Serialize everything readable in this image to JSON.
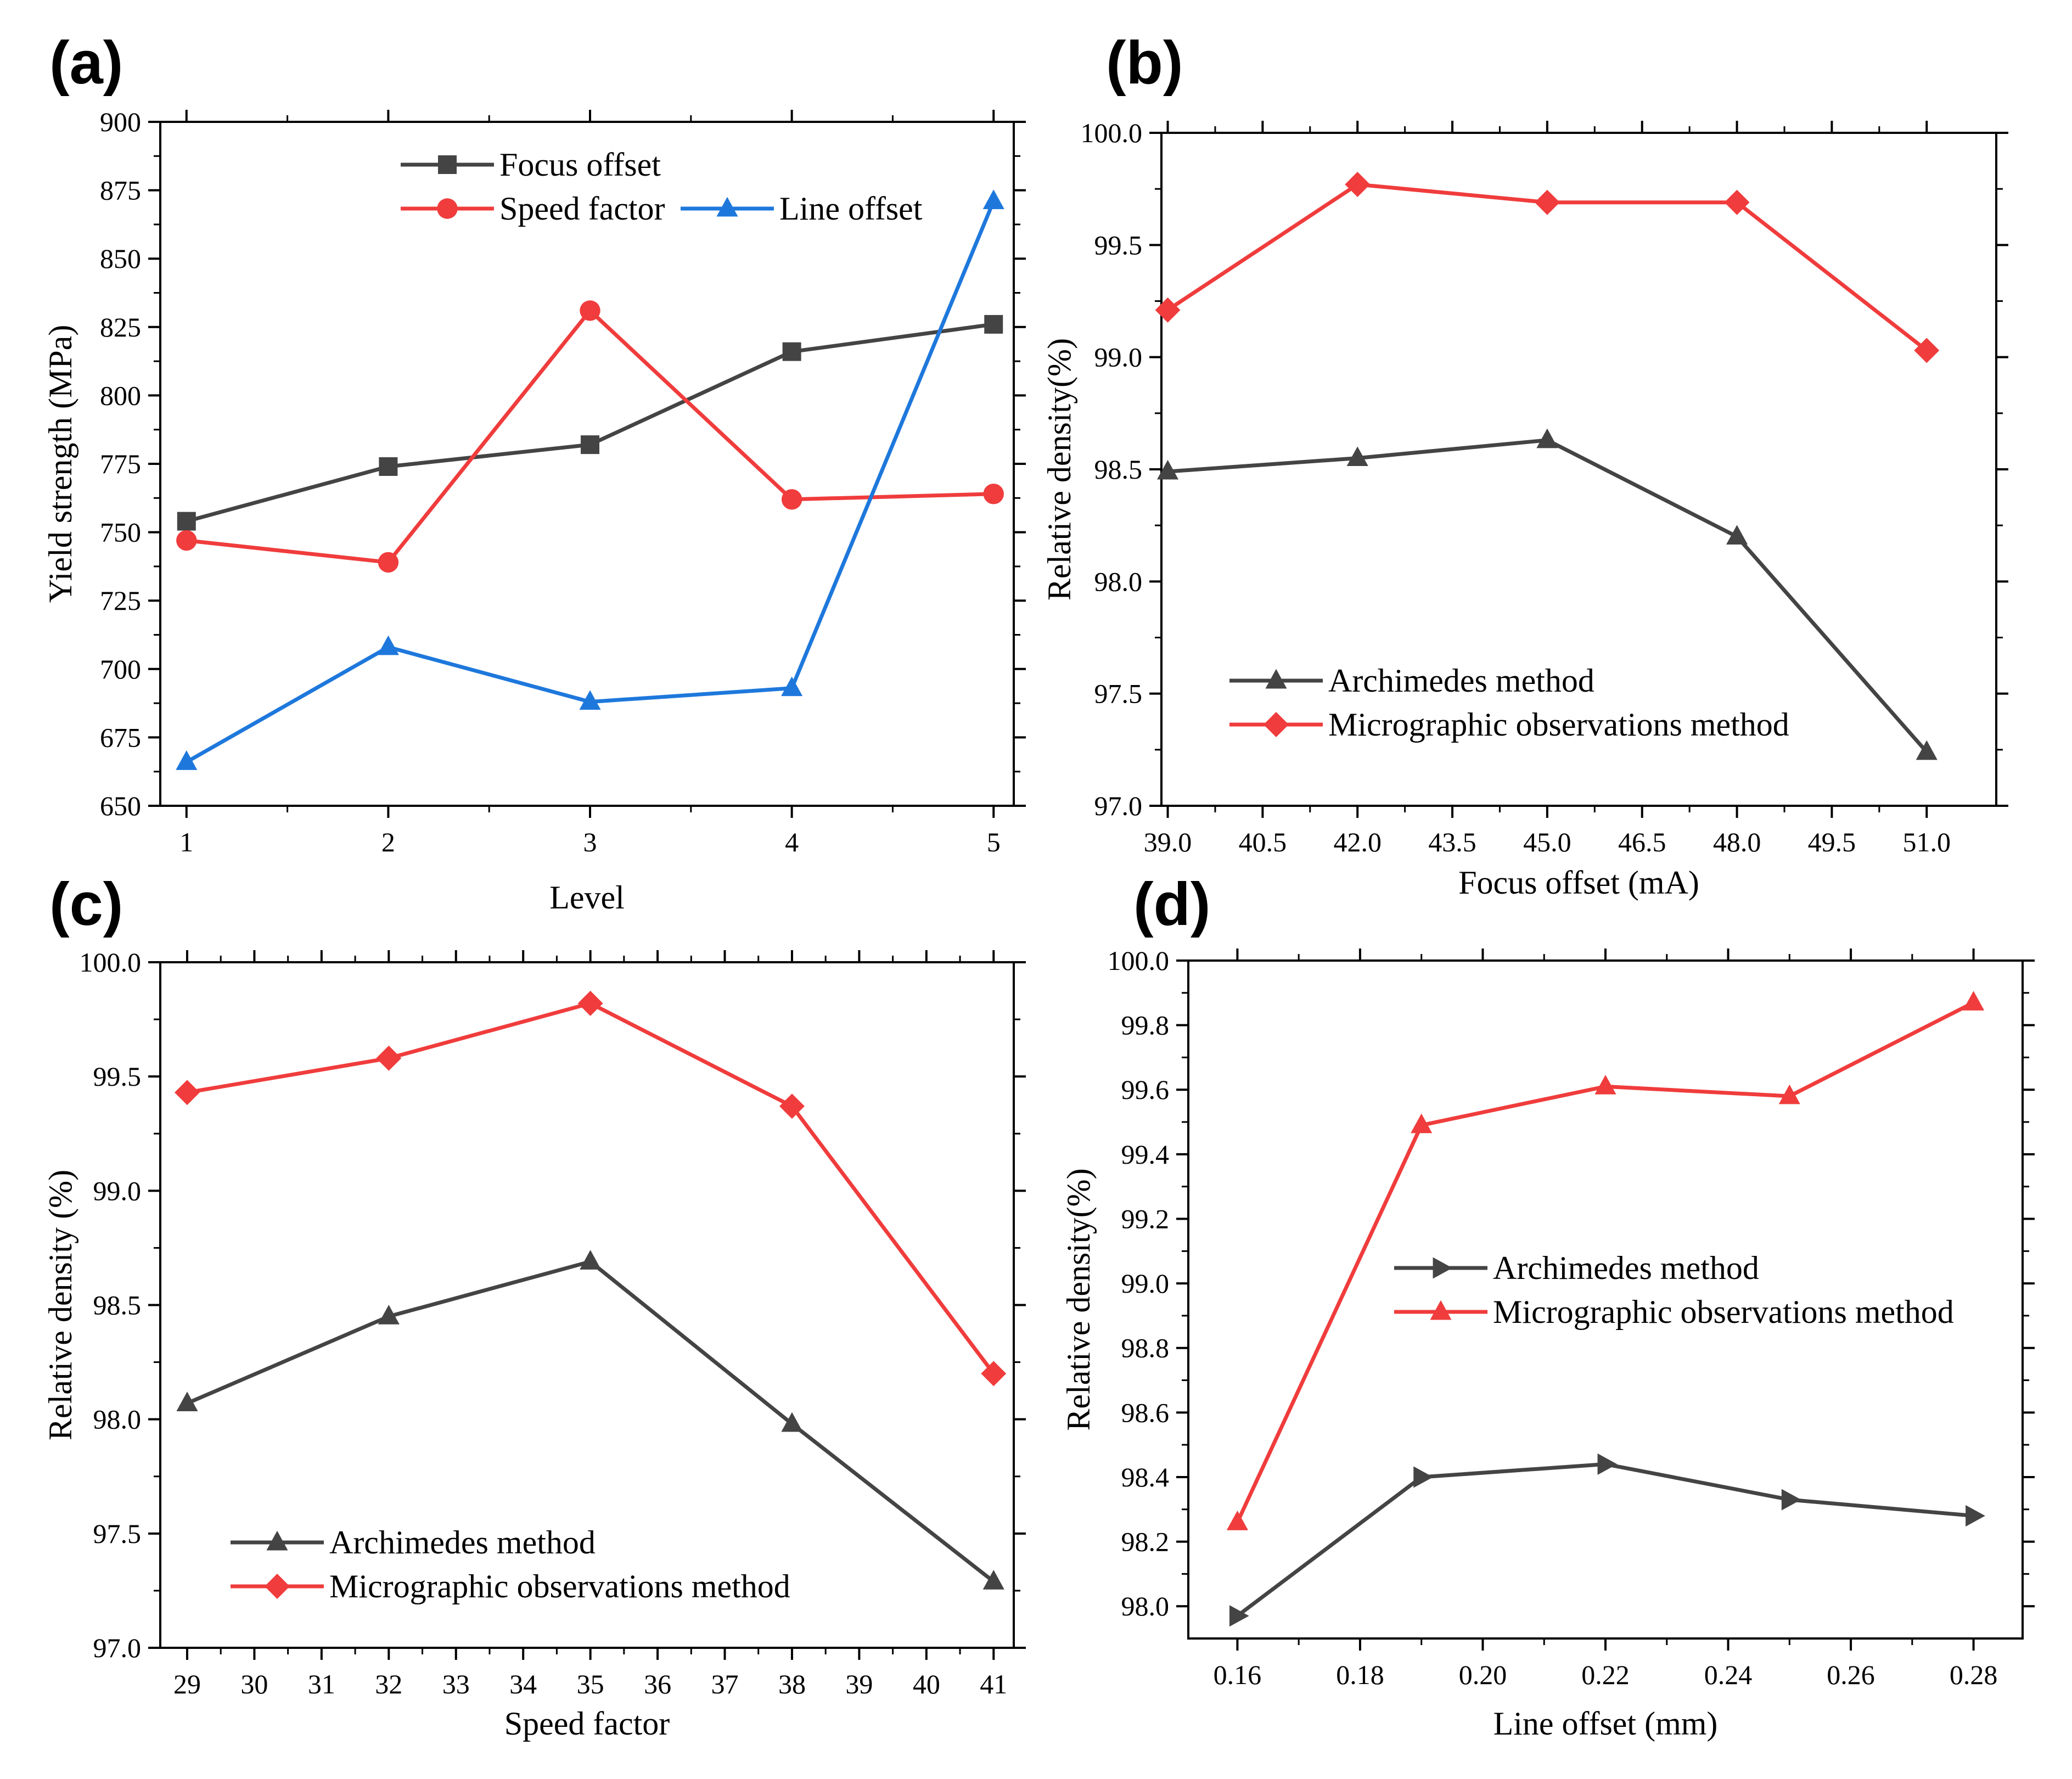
{
  "colors": {
    "black_series": "#444444",
    "red_series": "#F03C3C",
    "blue_series": "#1E78DC"
  },
  "chart_data": [
    {
      "id": "a",
      "panel_label": "(a)",
      "type": "line",
      "xlabel": "Level",
      "ylabel": "Yield strength (MPa)",
      "xlim": [
        0.87,
        5.1
      ],
      "ylim": [
        650,
        900
      ],
      "xticks": [
        1,
        2,
        3,
        4,
        5
      ],
      "xtick_labels": [
        "1",
        "2",
        "3",
        "4",
        "5"
      ],
      "yticks": [
        650,
        675,
        700,
        725,
        750,
        775,
        800,
        825,
        850,
        875,
        900
      ],
      "ytick_labels": [
        "650",
        "675",
        "700",
        "725",
        "750",
        "775",
        "800",
        "825",
        "850",
        "875",
        "900"
      ],
      "legend_position": "top-center",
      "series": [
        {
          "name": "Focus offset",
          "color": "#444444",
          "marker": "square",
          "x": [
            1,
            2,
            3,
            4,
            5
          ],
          "values": [
            754,
            774,
            782,
            816,
            826
          ]
        },
        {
          "name": "Speed factor",
          "color": "#F03C3C",
          "marker": "circle",
          "x": [
            1,
            2,
            3,
            4,
            5
          ],
          "values": [
            747,
            739,
            831,
            762,
            764
          ]
        },
        {
          "name": "Line offset",
          "color": "#1E78DC",
          "marker": "triangle-up",
          "x": [
            1,
            2,
            3,
            4,
            5
          ],
          "values": [
            666,
            708,
            688,
            693,
            871
          ]
        }
      ]
    },
    {
      "id": "b",
      "panel_label": "(b)",
      "type": "line",
      "xlabel": "Focus offset (mA)",
      "ylabel": "Relative density(%)",
      "xlim": [
        38.9,
        52.1
      ],
      "ylim": [
        97.0,
        100.0
      ],
      "xticks": [
        39,
        40.5,
        42,
        43.5,
        45,
        46.5,
        48,
        49.5,
        51
      ],
      "xtick_labels": [
        "39.0",
        "40.5",
        "42.0",
        "43.5",
        "45.0",
        "46.5",
        "48.0",
        "49.5",
        "51.0"
      ],
      "yticks": [
        97.0,
        97.5,
        98.0,
        98.5,
        99.0,
        99.5,
        100.0
      ],
      "ytick_labels": [
        "97.0",
        "97.5",
        "98.0",
        "98.5",
        "99.0",
        "99.5",
        "100.0"
      ],
      "legend_position": "bottom-left",
      "series": [
        {
          "name": "Archimedes method",
          "color": "#444444",
          "marker": "triangle-up",
          "x": [
            39,
            42,
            45,
            48,
            51
          ],
          "values": [
            98.49,
            98.55,
            98.63,
            98.2,
            97.24
          ]
        },
        {
          "name": "Micrographic observations method",
          "color": "#F03C3C",
          "marker": "diamond",
          "x": [
            39,
            42,
            45,
            48,
            51
          ],
          "values": [
            99.21,
            99.77,
            99.69,
            99.69,
            99.03
          ]
        }
      ]
    },
    {
      "id": "c",
      "panel_label": "(c)",
      "type": "line",
      "xlabel": "Speed factor",
      "ylabel": "Relative density (%)",
      "xlim": [
        28.6,
        41.3
      ],
      "ylim": [
        97.0,
        100.0
      ],
      "xticks": [
        29,
        30,
        31,
        32,
        33,
        34,
        35,
        36,
        37,
        38,
        39,
        40,
        41
      ],
      "xtick_labels": [
        "29",
        "30",
        "31",
        "32",
        "33",
        "34",
        "35",
        "36",
        "37",
        "38",
        "39",
        "40",
        "41"
      ],
      "yticks": [
        97.0,
        97.5,
        98.0,
        98.5,
        99.0,
        99.5,
        100.0
      ],
      "ytick_labels": [
        "97.0",
        "97.5",
        "98.0",
        "98.5",
        "99.0",
        "99.5",
        "100.0"
      ],
      "legend_position": "bottom-left",
      "series": [
        {
          "name": "Archimedes method",
          "color": "#444444",
          "marker": "triangle-up",
          "x": [
            29,
            32,
            35,
            38,
            41
          ],
          "values": [
            98.07,
            98.45,
            98.69,
            97.98,
            97.29
          ]
        },
        {
          "name": "Micrographic observations method",
          "color": "#F03C3C",
          "marker": "diamond",
          "x": [
            29,
            32,
            35,
            38,
            41
          ],
          "values": [
            99.43,
            99.58,
            99.82,
            99.37,
            98.2
          ]
        }
      ]
    },
    {
      "id": "d",
      "panel_label": "(d)",
      "type": "line",
      "xlabel": "Line offset (mm)",
      "ylabel": "Relative density(%)",
      "xlim": [
        0.152,
        0.288
      ],
      "ylim": [
        97.9,
        100.0
      ],
      "xticks": [
        0.16,
        0.18,
        0.2,
        0.22,
        0.24,
        0.26,
        0.28
      ],
      "xtick_labels": [
        "0.16",
        "0.18",
        "0.20",
        "0.22",
        "0.24",
        "0.26",
        "0.28"
      ],
      "yticks": [
        98.0,
        98.2,
        98.4,
        98.6,
        98.8,
        99.0,
        99.2,
        99.4,
        99.6,
        99.8,
        100.0
      ],
      "ytick_labels": [
        "98.0",
        "98.2",
        "98.4",
        "98.6",
        "98.8",
        "99.0",
        "99.2",
        "99.4",
        "99.6",
        "99.8",
        "100.0"
      ],
      "legend_position": "center",
      "series": [
        {
          "name": "Archimedes method",
          "color": "#444444",
          "marker": "triangle-right",
          "x": [
            0.16,
            0.19,
            0.22,
            0.25,
            0.28
          ],
          "values": [
            97.97,
            98.4,
            98.44,
            98.33,
            98.28
          ]
        },
        {
          "name": "Micrographic observations method",
          "color": "#F03C3C",
          "marker": "triangle-up",
          "x": [
            0.16,
            0.19,
            0.22,
            0.25,
            0.28
          ],
          "values": [
            98.26,
            99.49,
            99.61,
            99.58,
            99.87
          ]
        }
      ]
    }
  ]
}
